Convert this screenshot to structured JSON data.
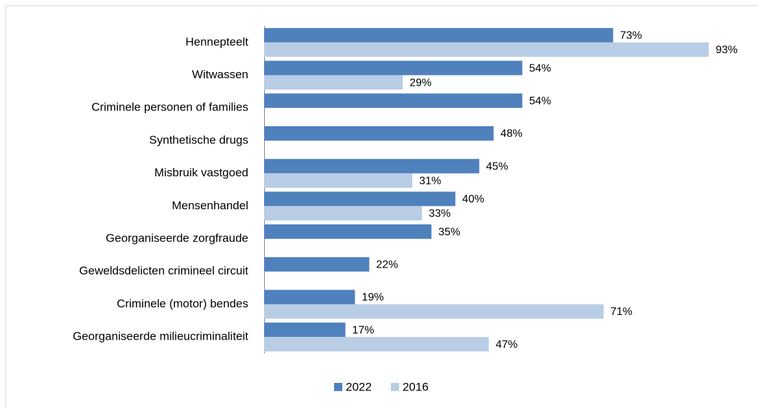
{
  "chart_data": {
    "type": "bar",
    "orientation": "horizontal",
    "categories": [
      "Hennepteelt",
      "Witwassen",
      "Criminele personen of families",
      "Synthetische drugs",
      "Misbruik vastgoed",
      "Mensenhandel",
      "Georganiseerde zorgfraude",
      "Geweldsdelicten crimineel circuit",
      "Criminele (motor) bendes",
      "Georganiseerde milieucriminaliteit"
    ],
    "series": [
      {
        "name": "2022",
        "color": "#4f81bd",
        "values": [
          73,
          54,
          54,
          48,
          45,
          40,
          35,
          22,
          19,
          17
        ],
        "value_labels": [
          "73%",
          "54%",
          "54%",
          "48%",
          "45%",
          "40%",
          "35%",
          "22%",
          "19%",
          "17%"
        ]
      },
      {
        "name": "2016",
        "color": "#b9cde5",
        "values": [
          93,
          29,
          null,
          null,
          31,
          33,
          null,
          null,
          71,
          47
        ],
        "value_labels": [
          "93%",
          "29%",
          null,
          null,
          "31%",
          "33%",
          null,
          null,
          "71%",
          "47%"
        ]
      }
    ],
    "xlim": [
      0,
      100
    ],
    "legend": "bottom"
  }
}
